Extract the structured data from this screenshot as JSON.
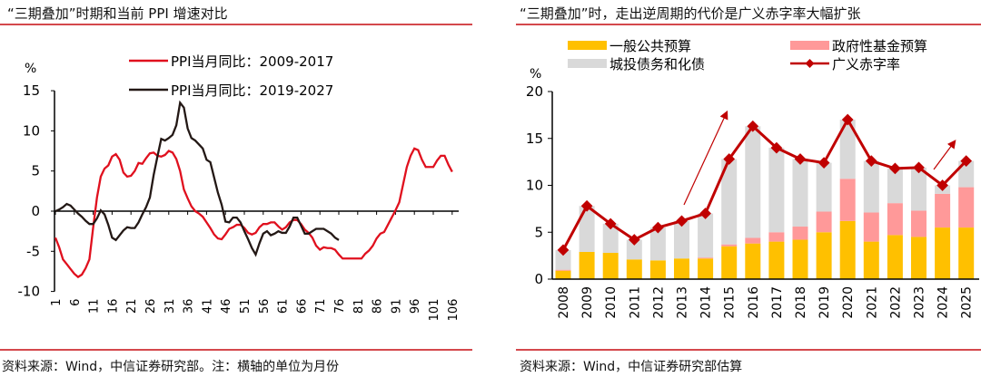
{
  "left": {
    "title": "“三期叠加”时期和当前 PPI 增速对比",
    "source": "资料来源：Wind，中信证券研究部。注：横轴的单位为月份"
  },
  "right": {
    "title": "“三期叠加”时，走出逆周期的代价是广义赤字率大幅扩张",
    "source": "资料来源：Wind，中信证券研究部估算"
  },
  "chart_data": [
    {
      "type": "line",
      "ylabel": "%",
      "ylim": [
        -10,
        15
      ],
      "yticks": [
        -10,
        -5,
        0,
        5,
        10,
        15
      ],
      "xticks": [
        1,
        6,
        11,
        16,
        21,
        26,
        31,
        36,
        41,
        46,
        51,
        56,
        61,
        66,
        71,
        76,
        81,
        86,
        91,
        96,
        101,
        106
      ],
      "legend": "top",
      "series": [
        {
          "name": "PPI当月同比：2009-2017",
          "color": "#e0101e",
          "values": [
            -3.3,
            -4.5,
            -6,
            -6.6,
            -7.2,
            -7.8,
            -8.2,
            -7.9,
            -7.1,
            -6,
            -2,
            1.7,
            4.3,
            5.3,
            5.7,
            6.8,
            7.1,
            6.4,
            4.8,
            4.3,
            4.4,
            5.0,
            6.0,
            5.9,
            6.6,
            7.2,
            7.3,
            6.9,
            6.8,
            7.0,
            7.5,
            7.3,
            6.5,
            5.0,
            2.7,
            1.6,
            0.6,
            0,
            -0.3,
            -0.7,
            -1.4,
            -2.1,
            -2.9,
            -3.4,
            -3.5,
            -2.9,
            -2.2,
            -2.0,
            -1.7,
            -1.7,
            -2.1,
            -2.7,
            -2.9,
            -2.7,
            -2.0,
            -1.6,
            -1.6,
            -1.4,
            -1.4,
            -1.9,
            -2.3,
            -2.0,
            -1.4,
            -1.1,
            -1.1,
            -1.6,
            -2.3,
            -2.7,
            -3.3,
            -4.3,
            -4.8,
            -4.5,
            -4.6,
            -4.6,
            -4.8,
            -5.4,
            -5.9,
            -5.9,
            -5.9,
            -5.9,
            -5.9,
            -5.9,
            -5.3,
            -4.9,
            -4.3,
            -3.4,
            -2.8,
            -2.6,
            -1.7,
            -0.8,
            0.1,
            1.1,
            3.3,
            5.5,
            6.9,
            7.8,
            7.6,
            6.4,
            5.5,
            5.5,
            5.5,
            6.3,
            6.9,
            6.9,
            5.8,
            4.9
          ]
        },
        {
          "name": "PPI当月同比：2019-2027",
          "color": "#231815",
          "values": [
            0,
            0.2,
            0.5,
            0.9,
            0.7,
            0.2,
            -0.3,
            -0.7,
            -1.2,
            -1.6,
            -1.6,
            -0.9,
            0.1,
            -0.4,
            -1.7,
            -3.3,
            -3.6,
            -3.0,
            -2.4,
            -2.0,
            -2.1,
            -2.1,
            -1.4,
            -0.4,
            0.5,
            1.7,
            4.5,
            6.8,
            9.0,
            8.8,
            9.1,
            9.5,
            10.7,
            13.5,
            12.9,
            10.3,
            9.1,
            8.8,
            8.3,
            7.8,
            6.4,
            6.1,
            4.2,
            2.3,
            0.8,
            -1.3,
            -1.4,
            -0.8,
            -0.8,
            -1.4,
            -2.5,
            -3.5,
            -4.6,
            -5.4,
            -4.0,
            -2.8,
            -2.5,
            -3.0,
            -2.8,
            -2.5,
            -2.7,
            -2.7,
            -1.9,
            -0.8,
            -0.8,
            -1.8,
            -2.8,
            -2.8,
            -2.5,
            -2.2,
            -2.2,
            -2.2,
            -2.5,
            -2.8,
            -3.3,
            -3.6
          ]
        }
      ]
    },
    {
      "type": "bar",
      "stacked": true,
      "ylabel": "%",
      "ylim": [
        0,
        20
      ],
      "yticks": [
        0,
        5,
        10,
        15,
        20
      ],
      "categories": [
        "2008",
        "2009",
        "2010",
        "2011",
        "2012",
        "2013",
        "2014",
        "2015",
        "2016",
        "2017",
        "2018",
        "2019",
        "2020",
        "2021",
        "2022",
        "2023",
        "2024",
        "2025"
      ],
      "legend": "top",
      "series": [
        {
          "name": "一般公共预算",
          "color": "#ffc000",
          "values": [
            0.9,
            2.9,
            2.8,
            2.1,
            2.0,
            2.2,
            2.2,
            3.5,
            3.8,
            4.0,
            4.2,
            5.0,
            6.2,
            4.0,
            4.7,
            4.5,
            5.5,
            5.5
          ]
        },
        {
          "name": "政府性基金预算",
          "color": "#ff9999",
          "values": [
            0.1,
            0,
            0,
            0,
            0,
            0,
            0.1,
            0.2,
            0.6,
            1.0,
            1.4,
            2.2,
            4.5,
            3.1,
            3.4,
            2.8,
            3.6,
            4.3
          ]
        },
        {
          "name": "城投债务和化债",
          "color": "#d9d9d9",
          "values": [
            2.1,
            4.9,
            3.1,
            2.1,
            3.5,
            4.0,
            4.7,
            9.1,
            11.9,
            9.0,
            7.2,
            5.2,
            6.3,
            5.5,
            3.7,
            4.6,
            0.9,
            2.8
          ]
        },
        {
          "name": "广义赤字率",
          "color": "#c00000",
          "type": "line",
          "values": [
            3.1,
            7.8,
            5.9,
            4.2,
            5.5,
            6.2,
            7.0,
            12.8,
            16.3,
            14.0,
            12.8,
            12.4,
            17.0,
            12.6,
            11.8,
            11.9,
            10.0,
            12.6
          ]
        }
      ]
    }
  ]
}
